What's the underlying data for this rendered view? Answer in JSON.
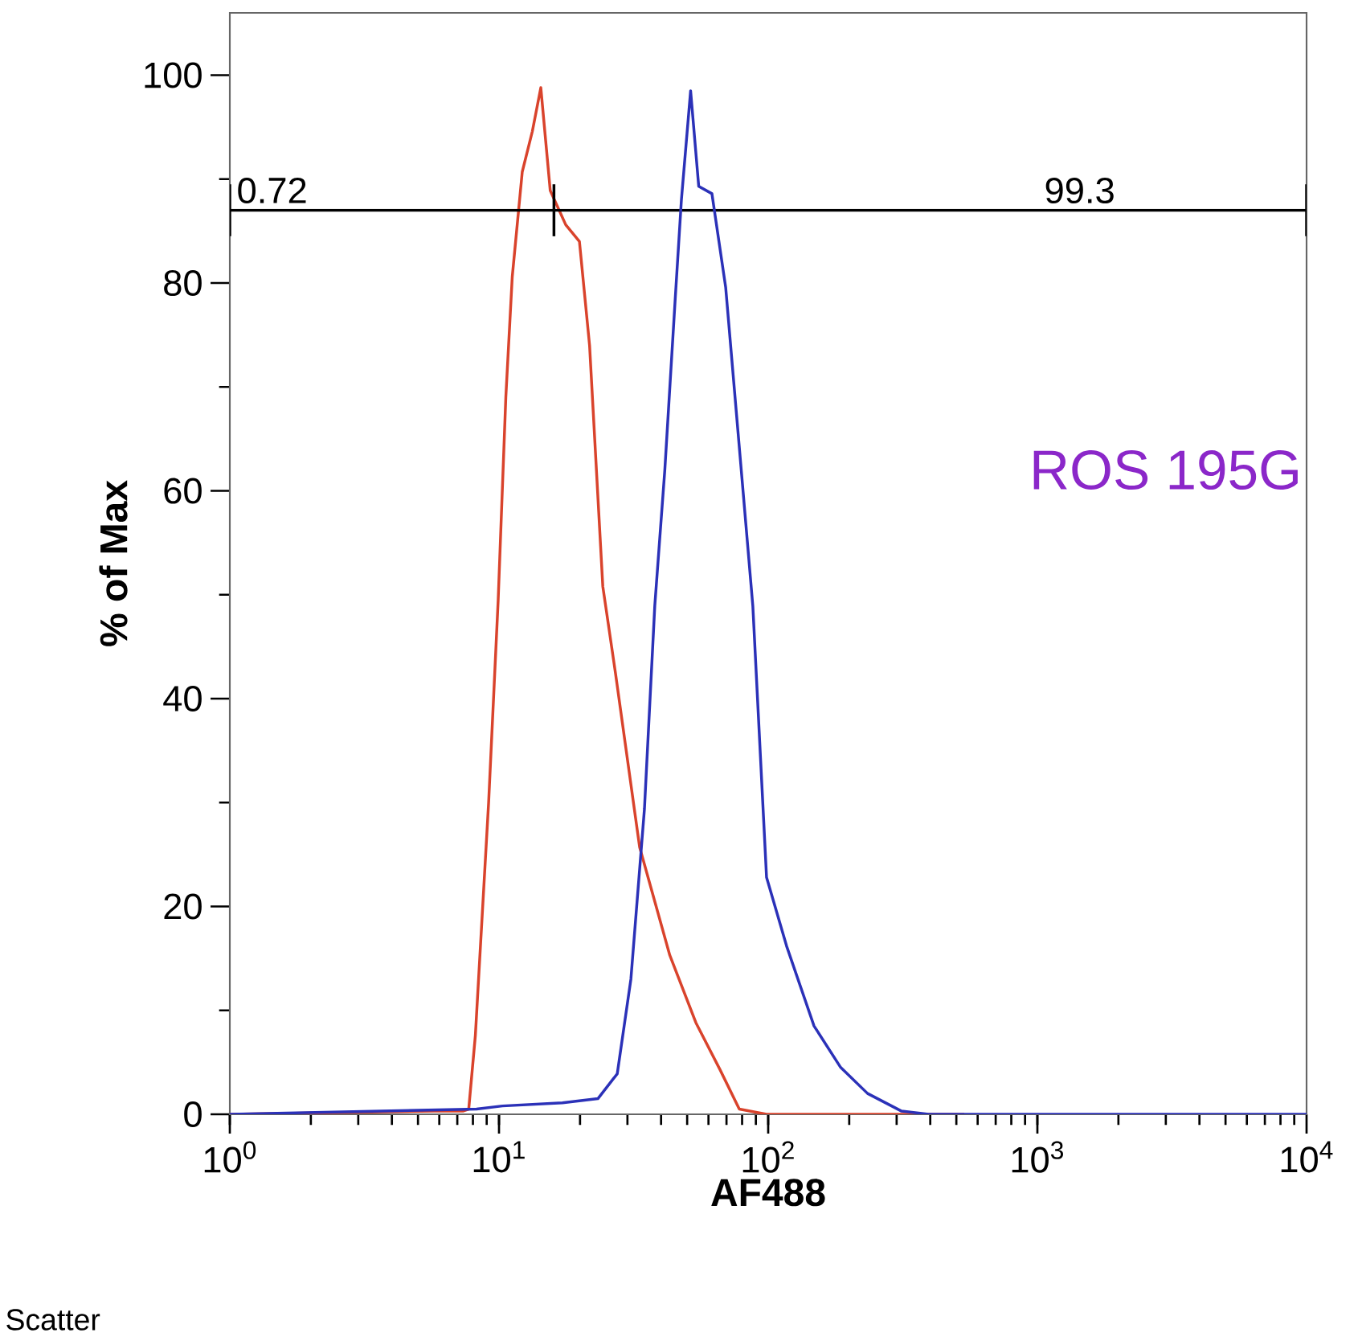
{
  "chart_data": {
    "type": "line",
    "xlabel": "AF488",
    "ylabel": "% of Max",
    "log": "x",
    "xlim": [
      1,
      10000
    ],
    "ylim": [
      0,
      106
    ],
    "xticks": [
      {
        "value": 1,
        "label": "10$^{0}$"
      },
      {
        "value": 10,
        "label": "10$^{1}$"
      },
      {
        "value": 100,
        "label": "10$^{2}$"
      },
      {
        "value": 1000,
        "label": "10$^{3}$"
      },
      {
        "value": 10000,
        "label": "10$^{4}$"
      }
    ],
    "yticks": [
      0,
      20,
      40,
      60,
      80,
      100
    ],
    "x": [
      1,
      5.73,
      7.34,
      7.72,
      8.17,
      9.15,
      9.93,
      10.6,
      11.2,
      12.2,
      13.3,
      14.3,
      15.5,
      17.7,
      19.9,
      21.7,
      24.3,
      27.1,
      33.3,
      43.1,
      53.9,
      66.2,
      78.1,
      98.6,
      535
    ],
    "series": [
      {
        "color": "#d9432c",
        "values": [
          0,
          0.3,
          0.3,
          0.5,
          7.6,
          30,
          49.5,
          69,
          80.6,
          90.7,
          94.6,
          98.8,
          88.9,
          85.6,
          84,
          74,
          50.8,
          42.4,
          25.7,
          15.3,
          8.8,
          4.3,
          0.5,
          0,
          0
        ]
      },
      {
        "color": "#000000",
        "x": [
          1,
          16,
          10000
        ],
        "values": [
          87,
          87,
          87
        ],
        "errors": [
          2.5,
          2.5,
          2.5
        ]
      },
      {
        "color": "#2b31b8",
        "x": [
          1,
          8.25,
          10.3,
          17.2,
          23.3,
          27.5,
          30.9,
          34.7,
          37.9,
          41.3,
          45.1,
          47.6,
          51.5,
          55.2,
          61.8,
          69.5,
          80.2,
          87.7,
          98.6,
          117,
          148,
          186,
          234,
          313,
          395,
          10000
        ],
        "values": [
          0,
          0.5,
          0.8,
          1.1,
          1.5,
          3.9,
          13,
          29.4,
          48.9,
          62,
          78.3,
          88,
          98.5,
          89.3,
          88.6,
          79.6,
          60.7,
          48.9,
          22.8,
          16.2,
          8.5,
          4.5,
          2,
          0.3,
          0,
          0
        ]
      }
    ],
    "annotations": [
      "ROS 195G",
      "Scatter",
      {
        "text": "0.72",
        "x": 1,
        "y": 87
      },
      {
        "text": "99.3",
        "x": 1000,
        "y": 87
      }
    ]
  }
}
